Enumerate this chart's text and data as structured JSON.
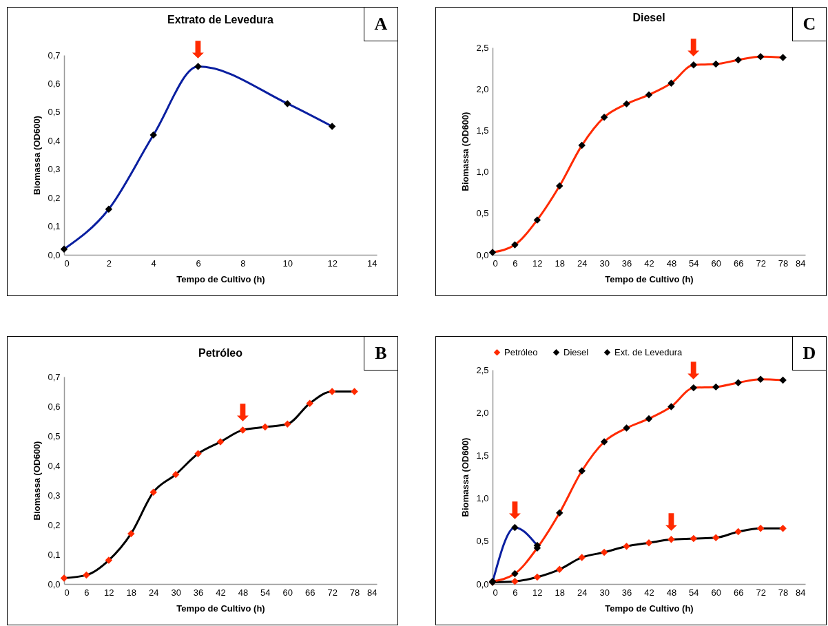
{
  "chart_data": [
    {
      "type": "line",
      "title": "Extrato de Levedura",
      "xlabel": "Tempo de Cultivo (h)",
      "ylabel": "Biomassa (OD600)",
      "marker": "diamond",
      "x": [
        0,
        2,
        4,
        6,
        10,
        12
      ],
      "series": [
        {
          "color": "#0a1fa0",
          "colors": [
            "#000000",
            "#000000",
            "#000000",
            "#000000",
            "#000000",
            "#000000"
          ],
          "values": [
            0.02,
            0.16,
            0.42,
            0.66,
            0.53,
            0.45
          ]
        }
      ],
      "xlim": [
        0,
        14
      ],
      "xticks": [
        0,
        2,
        4,
        6,
        8,
        10,
        12,
        14
      ],
      "ylim": [
        0,
        0.7
      ],
      "yticks": [
        {
          "value": 0,
          "label": "0,0"
        },
        {
          "value": 0.1,
          "label": "0,1"
        },
        {
          "value": 0.2,
          "label": "0,2"
        },
        {
          "value": 0.3,
          "label": "0,3"
        },
        {
          "value": 0.4,
          "label": "0,4"
        },
        {
          "value": 0.5,
          "label": "0,5"
        },
        {
          "value": 0.6,
          "label": "0,6"
        },
        {
          "value": 0.7,
          "label": "0,7"
        }
      ],
      "annotations": [
        "A",
        {
          "text": "⬇",
          "x": 6,
          "y": 0.66
        }
      ]
    },
    {
      "type": "line",
      "title": "Diesel",
      "xlabel": "Tempo de Cultivo (h)",
      "ylabel": "Biomassa (OD600)",
      "marker": "diamond",
      "x": [
        0,
        6,
        12,
        18,
        24,
        30,
        36,
        42,
        48,
        54,
        60,
        66,
        72,
        78
      ],
      "series": [
        {
          "color": "#ff2a00",
          "colors": [
            "#000000",
            "#000000",
            "#000000",
            "#000000",
            "#000000",
            "#000000",
            "#000000",
            "#000000",
            "#000000",
            "#000000",
            "#000000",
            "#000000",
            "#000000",
            "#000000"
          ],
          "values": [
            0.03,
            0.12,
            0.42,
            0.83,
            1.32,
            1.66,
            1.82,
            1.93,
            2.07,
            2.29,
            2.3,
            2.35,
            2.39,
            2.38
          ]
        }
      ],
      "xlim": [
        0,
        84
      ],
      "xticks": [
        0,
        6,
        12,
        18,
        24,
        30,
        36,
        42,
        48,
        54,
        60,
        66,
        72,
        78,
        84
      ],
      "ylim": [
        0,
        2.5
      ],
      "yticks": [
        {
          "value": 0,
          "label": "0,0"
        },
        {
          "value": 0.5,
          "label": "0,5"
        },
        {
          "value": 1,
          "label": "1,0"
        },
        {
          "value": 1.5,
          "label": "1,5"
        },
        {
          "value": 2,
          "label": "2,0"
        },
        {
          "value": 2.5,
          "label": "2,5"
        }
      ],
      "annotations": [
        "C",
        {
          "text": "⬇",
          "x": 54,
          "y": 2.29
        }
      ]
    },
    {
      "type": "line",
      "title": "Petróleo",
      "xlabel": "Tempo de Cultivo (h)",
      "ylabel": "Biomassa (OD600)",
      "marker": "diamond",
      "x": [
        0,
        6,
        12,
        18,
        24,
        30,
        36,
        42,
        48,
        54,
        60,
        66,
        72,
        78
      ],
      "series": [
        {
          "color": "#000000",
          "colors": [
            "#ff2a00",
            "#ff2a00",
            "#ff2a00",
            "#ff2a00",
            "#ff2a00",
            "#ff2a00",
            "#ff2a00",
            "#ff2a00",
            "#ff2a00",
            "#ff2a00",
            "#ff2a00",
            "#ff2a00",
            "#ff2a00",
            "#ff2a00"
          ],
          "values": [
            0.02,
            0.03,
            0.08,
            0.17,
            0.31,
            0.37,
            0.44,
            0.48,
            0.52,
            0.53,
            0.54,
            0.61,
            0.65,
            0.65
          ]
        }
      ],
      "xlim": [
        0,
        84
      ],
      "xticks": [
        0,
        6,
        12,
        18,
        24,
        30,
        36,
        42,
        48,
        54,
        60,
        66,
        72,
        78,
        84
      ],
      "ylim": [
        0,
        0.7
      ],
      "yticks": [
        {
          "value": 0,
          "label": "0,0"
        },
        {
          "value": 0.1,
          "label": "0,1"
        },
        {
          "value": 0.2,
          "label": "0,2"
        },
        {
          "value": 0.3,
          "label": "0,3"
        },
        {
          "value": 0.4,
          "label": "0,4"
        },
        {
          "value": 0.5,
          "label": "0,5"
        },
        {
          "value": 0.6,
          "label": "0,6"
        },
        {
          "value": 0.7,
          "label": "0,7"
        }
      ],
      "annotations": [
        "B",
        {
          "text": "⬇",
          "x": 48,
          "y": 0.52
        }
      ]
    },
    {
      "type": "line",
      "xlabel": "Tempo de Cultivo (h)",
      "ylabel": "Biomassa (OD600)",
      "marker": "diamond",
      "legend": "top",
      "x": [
        0,
        6,
        12,
        18,
        24,
        30,
        36,
        42,
        48,
        54,
        60,
        66,
        72,
        78
      ],
      "series": [
        {
          "name": "Petróleo",
          "color": "#000000",
          "colors": [
            "#ff2a00",
            "#ff2a00",
            "#ff2a00",
            "#ff2a00",
            "#ff2a00",
            "#ff2a00",
            "#ff2a00",
            "#ff2a00",
            "#ff2a00",
            "#ff2a00",
            "#ff2a00",
            "#ff2a00",
            "#ff2a00",
            "#ff2a00"
          ],
          "values": [
            0.02,
            0.03,
            0.08,
            0.17,
            0.31,
            0.37,
            0.44,
            0.48,
            0.52,
            0.53,
            0.54,
            0.61,
            0.65,
            0.65
          ]
        },
        {
          "name": "Diesel",
          "color": "#ff2a00",
          "colors": [
            "#000000",
            "#000000",
            "#000000",
            "#000000",
            "#000000",
            "#000000",
            "#000000",
            "#000000",
            "#000000",
            "#000000",
            "#000000",
            "#000000",
            "#000000",
            "#000000"
          ],
          "values": [
            0.03,
            0.12,
            0.42,
            0.83,
            1.32,
            1.66,
            1.82,
            1.93,
            2.07,
            2.29,
            2.3,
            2.35,
            2.39,
            2.38
          ]
        },
        {
          "name": "Ext. de Levedura",
          "color": "#0a1fa0",
          "colors": [
            "#000000",
            "#000000",
            "#000000"
          ],
          "x": [
            0,
            6,
            12
          ],
          "values": [
            0.02,
            0.66,
            0.45
          ]
        }
      ],
      "xlim": [
        0,
        84
      ],
      "xticks": [
        0,
        6,
        12,
        18,
        24,
        30,
        36,
        42,
        48,
        54,
        60,
        66,
        72,
        78,
        84
      ],
      "ylim": [
        0,
        2.5
      ],
      "yticks": [
        {
          "value": 0,
          "label": "0,0"
        },
        {
          "value": 0.5,
          "label": "0,5"
        },
        {
          "value": 1,
          "label": "1,0"
        },
        {
          "value": 1.5,
          "label": "1,5"
        },
        {
          "value": 2,
          "label": "2,0"
        },
        {
          "value": 2.5,
          "label": "2,5"
        }
      ],
      "annotations": [
        "D",
        {
          "text": "⬇",
          "x": 6,
          "y": 0.66
        },
        {
          "text": "⬇",
          "x": 54,
          "y": 2.29
        },
        {
          "text": "⬇",
          "x": 48,
          "y": 0.52
        }
      ]
    }
  ]
}
